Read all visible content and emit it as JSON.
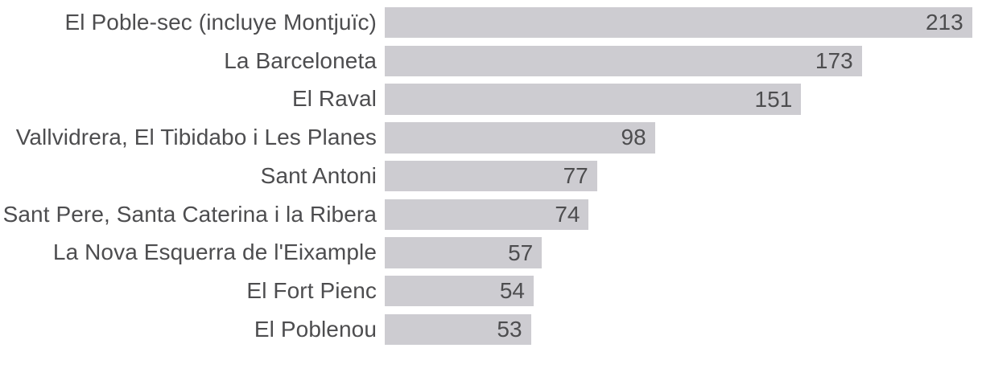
{
  "chart_data": {
    "type": "bar",
    "orientation": "horizontal",
    "title": "",
    "xlabel": "",
    "ylabel": "",
    "grid": false,
    "legend": false,
    "xlim": [
      0,
      216.6
    ],
    "value_label_position": "inside-right",
    "bar_color": "#cdccd1",
    "text_color": "#4d4d4f",
    "background_color": "#ffffff",
    "categories": [
      "El Poble-sec (incluye Montjuïc)",
      "La Barceloneta",
      "El Raval",
      "Vallvidrera, El Tibidabo i Les Planes",
      "Sant Antoni",
      "Sant Pere, Santa Caterina i la Ribera",
      "La Nova Esquerra de l'Eixample",
      "El Fort Pienc",
      "El Poblenou"
    ],
    "values": [
      213,
      173,
      151,
      98,
      77,
      74,
      57,
      54,
      53
    ]
  }
}
